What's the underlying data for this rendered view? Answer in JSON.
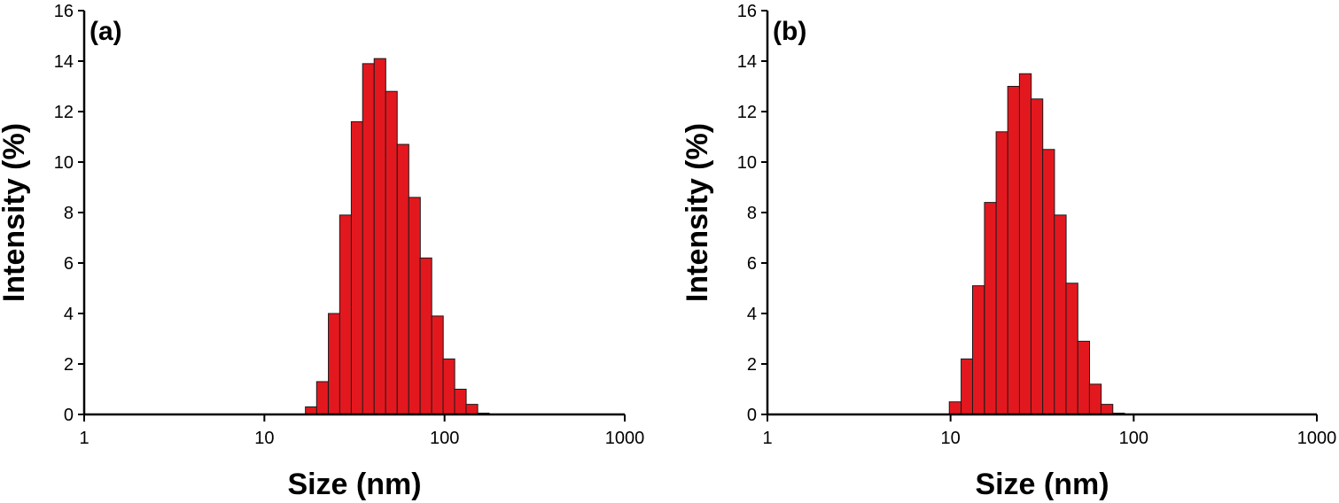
{
  "chart_data": [
    {
      "type": "bar",
      "panel_label": "(a)",
      "xlabel": "Size (nm)",
      "ylabel": "Intensity (%)",
      "xscale": "log",
      "xlim": [
        1,
        1000
      ],
      "ylim": [
        0,
        16
      ],
      "xticks": [
        "1",
        "10",
        "100",
        "1000"
      ],
      "yticks": [
        "0",
        "2",
        "4",
        "6",
        "8",
        "10",
        "12",
        "14",
        "16"
      ],
      "bar_color": "#e3181f",
      "grid": false,
      "bins": [
        {
          "size_nm": 18.2,
          "intensity": 0.3
        },
        {
          "size_nm": 21.0,
          "intensity": 1.3
        },
        {
          "size_nm": 24.4,
          "intensity": 4.0
        },
        {
          "size_nm": 28.2,
          "intensity": 7.9
        },
        {
          "size_nm": 32.7,
          "intensity": 11.6
        },
        {
          "size_nm": 37.8,
          "intensity": 13.9
        },
        {
          "size_nm": 43.8,
          "intensity": 14.1
        },
        {
          "size_nm": 50.7,
          "intensity": 12.8
        },
        {
          "size_nm": 58.8,
          "intensity": 10.7
        },
        {
          "size_nm": 68.1,
          "intensity": 8.6
        },
        {
          "size_nm": 78.8,
          "intensity": 6.2
        },
        {
          "size_nm": 91.3,
          "intensity": 3.9
        },
        {
          "size_nm": 105.7,
          "intensity": 2.2
        },
        {
          "size_nm": 122.4,
          "intensity": 1.0
        },
        {
          "size_nm": 141.8,
          "intensity": 0.4
        },
        {
          "size_nm": 164.2,
          "intensity": 0.05
        }
      ]
    },
    {
      "type": "bar",
      "panel_label": "(b)",
      "xlabel": "Size (nm)",
      "ylabel": "Intensity (%)",
      "xscale": "log",
      "xlim": [
        1,
        1000
      ],
      "ylim": [
        0,
        16
      ],
      "xticks": [
        "1",
        "10",
        "100",
        "1000"
      ],
      "yticks": [
        "0",
        "2",
        "4",
        "6",
        "8",
        "10",
        "12",
        "14",
        "16"
      ],
      "bar_color": "#e3181f",
      "grid": false,
      "bins": [
        {
          "size_nm": 10.6,
          "intensity": 0.5
        },
        {
          "size_nm": 12.3,
          "intensity": 2.2
        },
        {
          "size_nm": 14.2,
          "intensity": 5.1
        },
        {
          "size_nm": 16.5,
          "intensity": 8.4
        },
        {
          "size_nm": 19.1,
          "intensity": 11.2
        },
        {
          "size_nm": 22.1,
          "intensity": 13.0
        },
        {
          "size_nm": 25.6,
          "intensity": 13.5
        },
        {
          "size_nm": 29.6,
          "intensity": 12.5
        },
        {
          "size_nm": 34.3,
          "intensity": 10.5
        },
        {
          "size_nm": 39.7,
          "intensity": 7.9
        },
        {
          "size_nm": 46.0,
          "intensity": 5.2
        },
        {
          "size_nm": 53.3,
          "intensity": 2.9
        },
        {
          "size_nm": 61.7,
          "intensity": 1.2
        },
        {
          "size_nm": 71.4,
          "intensity": 0.4
        },
        {
          "size_nm": 82.7,
          "intensity": 0.05
        }
      ]
    }
  ]
}
